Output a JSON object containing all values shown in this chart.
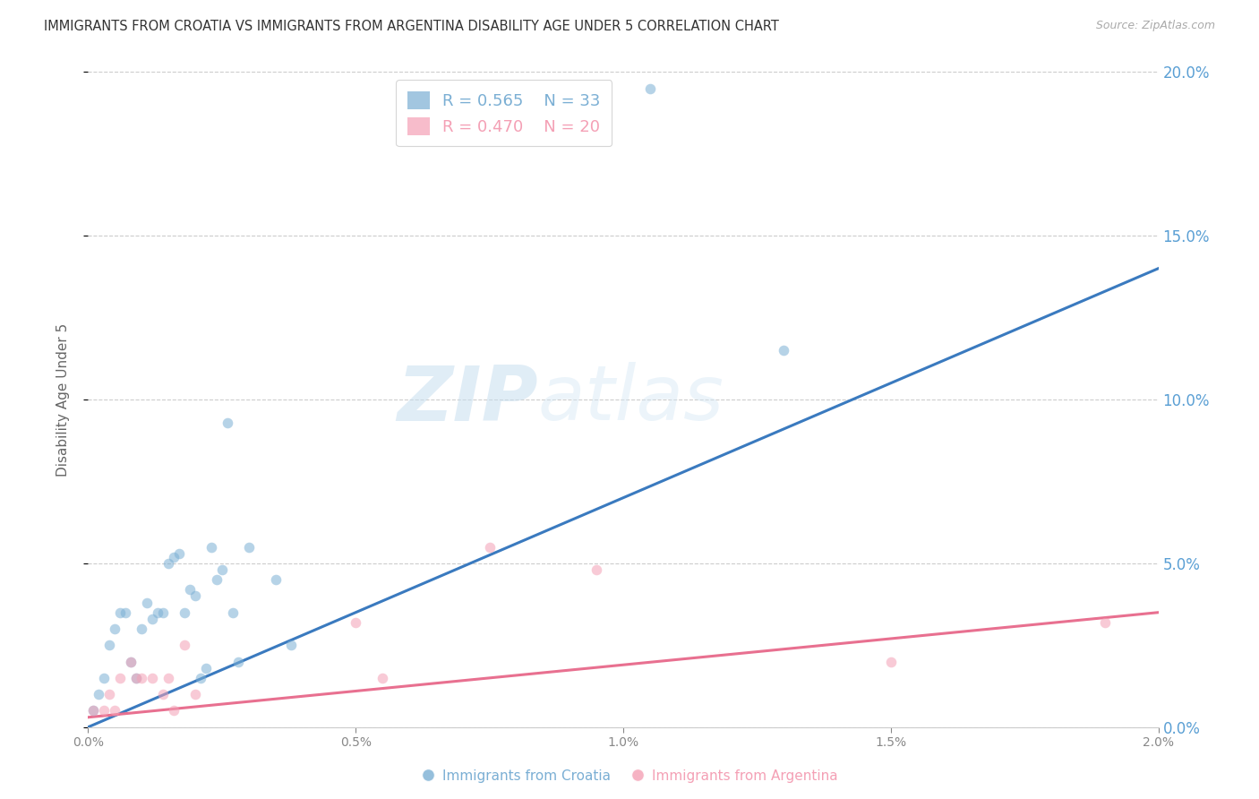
{
  "title": "IMMIGRANTS FROM CROATIA VS IMMIGRANTS FROM ARGENTINA DISABILITY AGE UNDER 5 CORRELATION CHART",
  "source": "Source: ZipAtlas.com",
  "xlim": [
    0.0,
    2.0
  ],
  "ylim": [
    0.0,
    20.0
  ],
  "ylabel": "Disability Age Under 5",
  "legend_entries": [
    {
      "label": "Immigrants from Croatia",
      "R": "0.565",
      "N": "33",
      "color": "#7bafd4"
    },
    {
      "label": "Immigrants from Argentina",
      "R": "0.470",
      "N": "20",
      "color": "#f4a0b5"
    }
  ],
  "watermark_zip": "ZIP",
  "watermark_atlas": "atlas",
  "croatia_x": [
    0.01,
    0.02,
    0.03,
    0.04,
    0.05,
    0.06,
    0.07,
    0.08,
    0.09,
    0.1,
    0.11,
    0.12,
    0.13,
    0.14,
    0.15,
    0.16,
    0.17,
    0.18,
    0.19,
    0.2,
    0.21,
    0.22,
    0.23,
    0.24,
    0.25,
    0.26,
    0.27,
    0.28,
    0.3,
    0.35,
    0.38,
    1.05,
    1.3
  ],
  "croatia_y": [
    0.5,
    1.0,
    1.5,
    2.5,
    3.0,
    3.5,
    3.5,
    2.0,
    1.5,
    3.0,
    3.8,
    3.3,
    3.5,
    3.5,
    5.0,
    5.2,
    5.3,
    3.5,
    4.2,
    4.0,
    1.5,
    1.8,
    5.5,
    4.5,
    4.8,
    9.3,
    3.5,
    2.0,
    5.5,
    4.5,
    2.5,
    19.5,
    11.5
  ],
  "argentina_x": [
    0.01,
    0.03,
    0.04,
    0.05,
    0.06,
    0.08,
    0.09,
    0.1,
    0.12,
    0.14,
    0.15,
    0.16,
    0.18,
    0.2,
    0.5,
    0.55,
    0.75,
    0.95,
    1.5,
    1.9
  ],
  "argentina_y": [
    0.5,
    0.5,
    1.0,
    0.5,
    1.5,
    2.0,
    1.5,
    1.5,
    1.5,
    1.0,
    1.5,
    0.5,
    2.5,
    1.0,
    3.2,
    1.5,
    5.5,
    4.8,
    2.0,
    3.2
  ],
  "croatia_line": [
    0.0,
    0.0,
    2.0,
    14.0
  ],
  "argentina_line": [
    0.0,
    0.3,
    2.0,
    3.5
  ],
  "croatia_line_color": "#3a7abf",
  "argentina_line_color": "#e87090",
  "dot_size": 70,
  "dot_alpha": 0.55,
  "grid_color": "#cccccc",
  "background_color": "#ffffff",
  "title_color": "#333333",
  "axis_label_color": "#666666",
  "right_tick_color": "#5a9fd4",
  "xlabel_ticks": [
    0.0,
    0.5,
    1.0,
    1.5,
    2.0
  ],
  "ylabel_ticks": [
    0.0,
    5.0,
    10.0,
    15.0,
    20.0
  ]
}
